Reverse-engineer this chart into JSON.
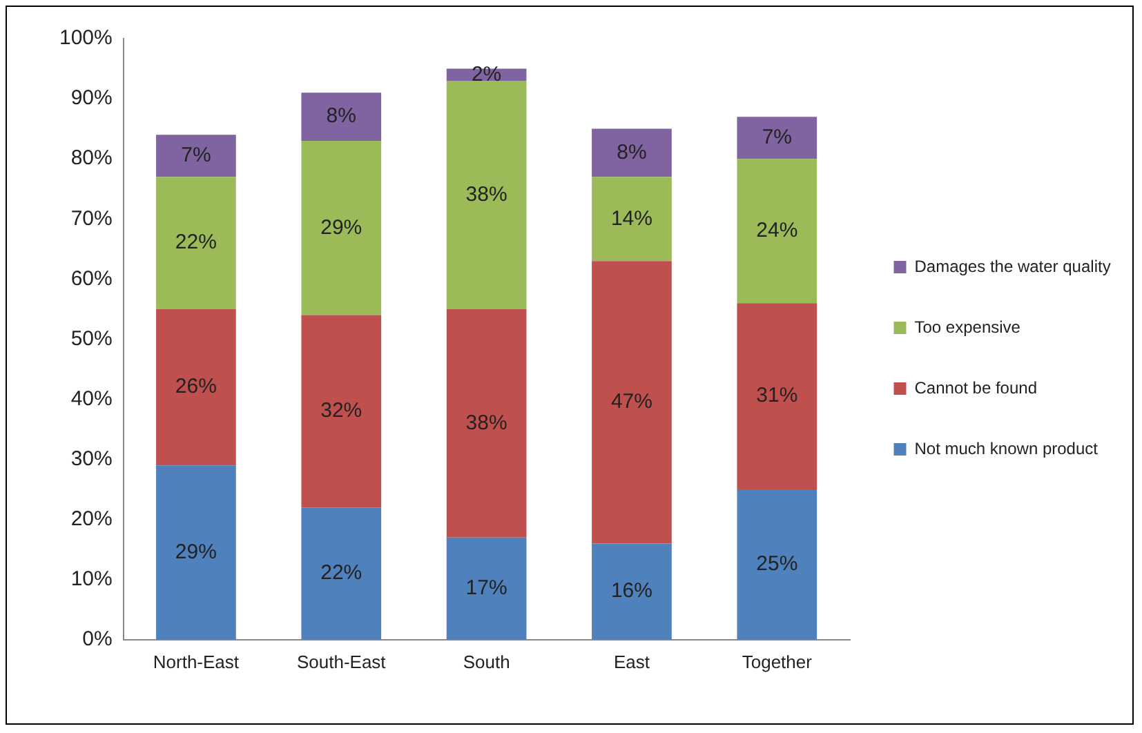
{
  "chart_data": {
    "type": "bar",
    "stacked": true,
    "categories": [
      "North-East",
      "South-East",
      "South",
      "East",
      "Together"
    ],
    "series": [
      {
        "name": "Not much known product",
        "color": "#4f81bd",
        "values": [
          29,
          22,
          17,
          16,
          25
        ],
        "value_labels": [
          "29%",
          "22%",
          "17%",
          "16%",
          "25%"
        ]
      },
      {
        "name": "Cannot be found",
        "color": "#c0504d",
        "values": [
          26,
          32,
          38,
          47,
          31
        ],
        "value_labels": [
          "26%",
          "32%",
          "38%",
          "47%",
          "31%"
        ]
      },
      {
        "name": "Too expensive",
        "color": "#9bbb59",
        "values": [
          22,
          29,
          38,
          14,
          24
        ],
        "value_labels": [
          "22%",
          "29%",
          "38%",
          "14%",
          "24%"
        ]
      },
      {
        "name": "Damages the water quality",
        "color": "#8064a2",
        "values": [
          7,
          8,
          2,
          8,
          7
        ],
        "value_labels": [
          "7%",
          "8%",
          "2%",
          "8%",
          "7%"
        ]
      }
    ],
    "ylim": [
      0,
      100
    ],
    "yticks": [
      {
        "value": 0,
        "label": "0%"
      },
      {
        "value": 10,
        "label": "10%"
      },
      {
        "value": 20,
        "label": "20%"
      },
      {
        "value": 30,
        "label": "30%"
      },
      {
        "value": 40,
        "label": "40%"
      },
      {
        "value": 50,
        "label": "50%"
      },
      {
        "value": 60,
        "label": "60%"
      },
      {
        "value": 70,
        "label": "70%"
      },
      {
        "value": 80,
        "label": "80%"
      },
      {
        "value": 90,
        "label": "90%"
      },
      {
        "value": 100,
        "label": "100%"
      }
    ],
    "grid": false,
    "legend": "right"
  }
}
